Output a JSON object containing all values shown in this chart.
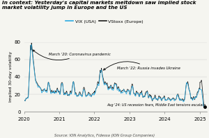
{
  "title": "In context: Yesterday's capital markets meltdown saw implied stock\nmarket volatility jump in Europe and the US",
  "ylabel": "Implied 30-day volatility",
  "source": "Source: ION Analytics, Fidessa (ION Group Companies)",
  "ylim": [
    0,
    80
  ],
  "xlim": [
    2020.0,
    2025.2
  ],
  "yticks": [
    0,
    20,
    40,
    60,
    80
  ],
  "xticks": [
    2020,
    2021,
    2022,
    2023,
    2024,
    2025
  ],
  "legend_vix": "VIX (USA)",
  "legend_vstoxx": "VStoxx (Europe)",
  "vix_color": "#29abe2",
  "vstoxx_color": "#1a1a1a",
  "background_color": "#f5f5f0"
}
